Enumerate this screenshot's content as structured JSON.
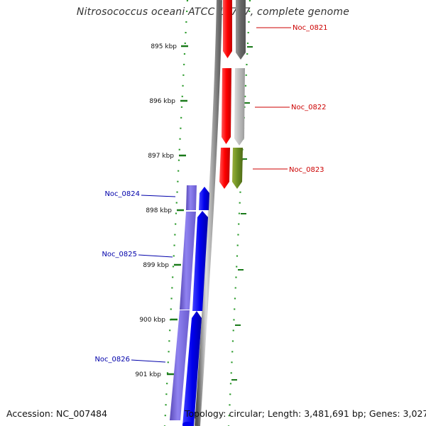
{
  "title": "Nitrosococcus oceani ATCC 19707, complete genome",
  "accession": "Accession: NC_007484",
  "topology": "Topology: circular; Length: 3,481,691 bp; Genes: 3,027",
  "ruler_ticks": [
    {
      "kbp": 895,
      "label": "895 kbp"
    },
    {
      "kbp": 896,
      "label": "896 kbp"
    },
    {
      "kbp": 897,
      "label": "897 kbp"
    },
    {
      "kbp": 898,
      "label": "898 kbp"
    },
    {
      "kbp": 899,
      "label": "899 kbp"
    },
    {
      "kbp": 900,
      "label": "900 kbp"
    },
    {
      "kbp": 901,
      "label": "901 kbp"
    }
  ],
  "genes": [
    {
      "name": "Noc_0821",
      "strand": "reverse",
      "label_color": "#cc0000",
      "feature_color": "#ff0000",
      "shade_color": "#777777"
    },
    {
      "name": "Noc_0822",
      "strand": "reverse",
      "label_color": "#cc0000",
      "feature_color": "#ff0000",
      "shade_color": "#bbbbbb"
    },
    {
      "name": "Noc_0823",
      "strand": "reverse",
      "label_color": "#cc0000",
      "feature_color": "#ff0000",
      "shade_color": "#6b8e23"
    },
    {
      "name": "Noc_0824",
      "strand": "forward",
      "label_color": "#0000aa",
      "feature_color": "#0000ee",
      "shade_color": "#7b68ee"
    },
    {
      "name": "Noc_0825",
      "strand": "forward",
      "label_color": "#0000aa",
      "feature_color": "#0000ee",
      "shade_color": "#7b68ee"
    },
    {
      "name": "Noc_0826",
      "strand": "forward",
      "label_color": "#0000aa",
      "feature_color": "#0000ee",
      "shade_color": "#7b68ee"
    }
  ],
  "colors": {
    "backbone": "#888888",
    "ruler_tick": "#1a7a1a",
    "dotted_track": "#2a9a2a"
  }
}
